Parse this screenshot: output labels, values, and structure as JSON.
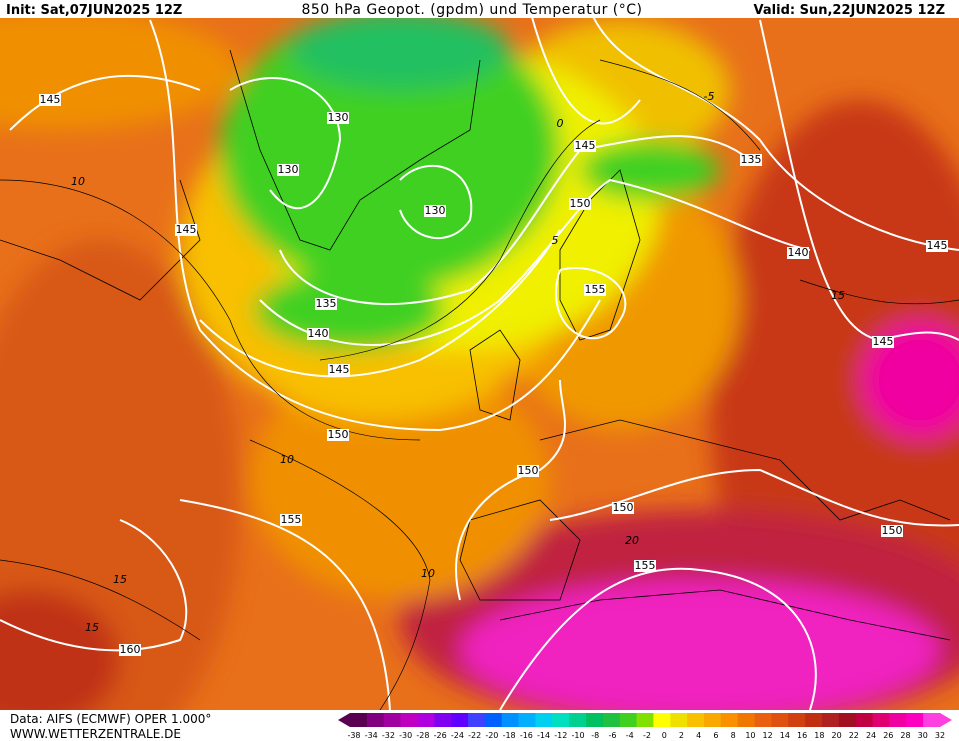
{
  "header": {
    "init": "Init: Sat,07JUN2025 12Z",
    "title": "850 hPa Geopot. (gpdm) und Temperatur (°C)",
    "valid": "Valid: Sun,22JUN2025 12Z"
  },
  "footer": {
    "data": "Data: AIFS (ECMWF) OPER 1.000°",
    "site": "WWW.WETTERZENTRALE.DE"
  },
  "colorbar": {
    "labels": [
      -38,
      -34,
      -32,
      -30,
      -28,
      -26,
      -24,
      -22,
      -20,
      -18,
      -16,
      -14,
      -12,
      -10,
      -8,
      -6,
      -4,
      -2,
      0,
      2,
      4,
      6,
      8,
      10,
      12,
      14,
      16,
      18,
      20,
      22,
      24,
      26,
      28,
      30,
      32
    ],
    "colors": [
      "#5a0050",
      "#800080",
      "#a000a0",
      "#c000c0",
      "#b000e0",
      "#8000f0",
      "#6000ff",
      "#4040ff",
      "#0060ff",
      "#0090ff",
      "#00b0ff",
      "#00d0f0",
      "#00e0c0",
      "#00d090",
      "#00c060",
      "#20c040",
      "#40d020",
      "#80e000",
      "#ffff00",
      "#f0e000",
      "#f8c000",
      "#f8a800",
      "#f89000",
      "#f07800",
      "#e86010",
      "#e05010",
      "#d04010",
      "#c03010",
      "#b02020",
      "#a01020",
      "#c00040",
      "#e00070",
      "#f000a0",
      "#ff00c0",
      "#ff40e0"
    ]
  },
  "geopotential_labels": [
    145,
    130,
    130,
    130,
    145,
    135,
    140,
    145,
    150,
    145,
    150,
    155,
    135,
    140,
    145,
    145,
    150,
    150,
    150,
    155,
    155,
    160
  ],
  "temperature_labels": [
    10,
    0,
    -5,
    5,
    15,
    10,
    10,
    15,
    15,
    20
  ]
}
